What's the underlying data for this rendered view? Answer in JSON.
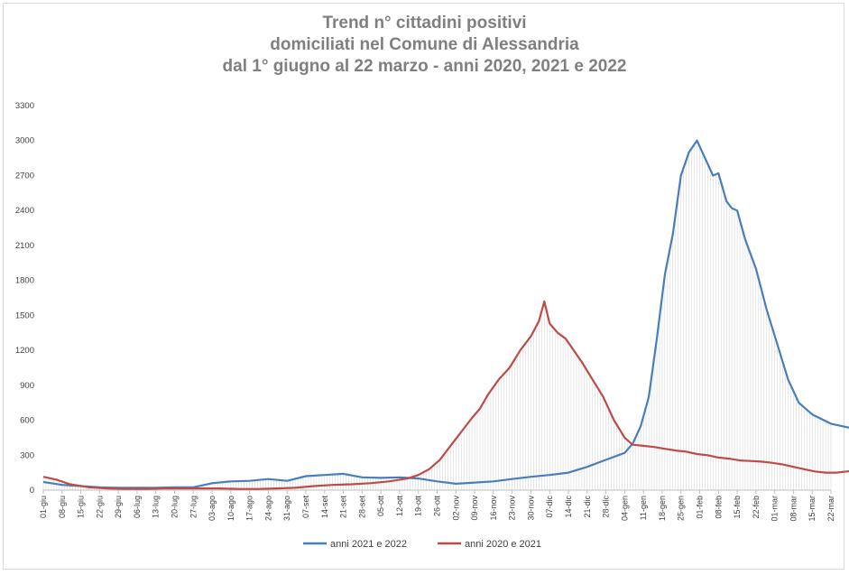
{
  "chart_data": {
    "type": "line",
    "title": [
      "Trend n° cittadini positivi",
      "domiciliati nel Comune di Alessandria",
      "dal 1° giugno al 22 marzo - anni 2020, 2021 e 2022"
    ],
    "xlabel": "",
    "ylabel": "",
    "ylim": [
      0,
      3300
    ],
    "yticks": [
      "0",
      "300",
      "600",
      "900",
      "1200",
      "1500",
      "1800",
      "2100",
      "2400",
      "2700",
      "3000",
      "3300"
    ],
    "categories": [
      "01-giu",
      "08-giu",
      "15-giu",
      "22-giu",
      "29-giu",
      "06-lug",
      "13-lug",
      "20-lug",
      "27-lug",
      "03-ago",
      "10-ago",
      "17-ago",
      "24-ago",
      "31-ago",
      "07-set",
      "14-set",
      "21-set",
      "28-set",
      "05-ott",
      "12-ott",
      "19-ott",
      "26-ott",
      "02-nov",
      "09-nov",
      "16-nov",
      "23-nov",
      "30-nov",
      "07-dic",
      "14-dic",
      "21-dic",
      "28-dic",
      "04-gen",
      "11-gen",
      "18-gen",
      "25-gen",
      "01-feb",
      "08-feb",
      "15-feb",
      "22-feb",
      "01-mar",
      "08-mar",
      "15-mar",
      "22-mar"
    ],
    "grid": false,
    "legend_position": "bottom",
    "series": [
      {
        "name": "anni 2021 e 2022",
        "color": "#4a7ebb",
        "points": [
          [
            0,
            70
          ],
          [
            3,
            60
          ],
          [
            7,
            45
          ],
          [
            14,
            35
          ],
          [
            21,
            25
          ],
          [
            28,
            20
          ],
          [
            35,
            20
          ],
          [
            42,
            20
          ],
          [
            49,
            25
          ],
          [
            56,
            25
          ],
          [
            63,
            60
          ],
          [
            70,
            75
          ],
          [
            77,
            80
          ],
          [
            84,
            95
          ],
          [
            91,
            80
          ],
          [
            98,
            120
          ],
          [
            105,
            130
          ],
          [
            112,
            140
          ],
          [
            119,
            110
          ],
          [
            126,
            105
          ],
          [
            133,
            110
          ],
          [
            140,
            100
          ],
          [
            147,
            75
          ],
          [
            154,
            55
          ],
          [
            161,
            65
          ],
          [
            168,
            75
          ],
          [
            175,
            95
          ],
          [
            182,
            115
          ],
          [
            189,
            130
          ],
          [
            196,
            150
          ],
          [
            203,
            200
          ],
          [
            210,
            260
          ],
          [
            217,
            320
          ],
          [
            220,
            400
          ],
          [
            223,
            550
          ],
          [
            226,
            800
          ],
          [
            229,
            1300
          ],
          [
            232,
            1850
          ],
          [
            235,
            2200
          ],
          [
            238,
            2700
          ],
          [
            241,
            2900
          ],
          [
            244,
            3000
          ],
          [
            247,
            2850
          ],
          [
            250,
            2700
          ],
          [
            252,
            2720
          ],
          [
            255,
            2480
          ],
          [
            257,
            2420
          ],
          [
            259,
            2400
          ],
          [
            262,
            2150
          ],
          [
            266,
            1900
          ],
          [
            270,
            1550
          ],
          [
            274,
            1250
          ],
          [
            278,
            950
          ],
          [
            282,
            750
          ],
          [
            287,
            650
          ],
          [
            294,
            570
          ],
          [
            301,
            535
          ],
          [
            308,
            545
          ],
          [
            315,
            570
          ],
          [
            319,
            600
          ],
          [
            323,
            680
          ],
          [
            326,
            700
          ]
        ]
      },
      {
        "name": "anni 2020 e 2021",
        "color": "#be4b48",
        "points": [
          [
            0,
            115
          ],
          [
            5,
            90
          ],
          [
            10,
            50
          ],
          [
            17,
            25
          ],
          [
            24,
            15
          ],
          [
            31,
            10
          ],
          [
            38,
            10
          ],
          [
            45,
            15
          ],
          [
            52,
            15
          ],
          [
            59,
            15
          ],
          [
            66,
            15
          ],
          [
            73,
            10
          ],
          [
            80,
            10
          ],
          [
            87,
            15
          ],
          [
            94,
            20
          ],
          [
            101,
            35
          ],
          [
            108,
            45
          ],
          [
            115,
            50
          ],
          [
            122,
            60
          ],
          [
            129,
            75
          ],
          [
            136,
            100
          ],
          [
            140,
            130
          ],
          [
            144,
            180
          ],
          [
            148,
            260
          ],
          [
            152,
            380
          ],
          [
            156,
            500
          ],
          [
            160,
            620
          ],
          [
            163,
            700
          ],
          [
            166,
            820
          ],
          [
            170,
            950
          ],
          [
            174,
            1050
          ],
          [
            178,
            1200
          ],
          [
            182,
            1320
          ],
          [
            185,
            1450
          ],
          [
            187,
            1620
          ],
          [
            189,
            1430
          ],
          [
            192,
            1350
          ],
          [
            195,
            1300
          ],
          [
            198,
            1200
          ],
          [
            201,
            1100
          ],
          [
            205,
            950
          ],
          [
            209,
            800
          ],
          [
            213,
            600
          ],
          [
            217,
            450
          ],
          [
            220,
            390
          ],
          [
            224,
            380
          ],
          [
            228,
            370
          ],
          [
            232,
            355
          ],
          [
            236,
            340
          ],
          [
            240,
            330
          ],
          [
            244,
            310
          ],
          [
            248,
            300
          ],
          [
            252,
            280
          ],
          [
            256,
            270
          ],
          [
            260,
            255
          ],
          [
            264,
            250
          ],
          [
            268,
            245
          ],
          [
            272,
            235
          ],
          [
            276,
            220
          ],
          [
            280,
            200
          ],
          [
            284,
            180
          ],
          [
            288,
            160
          ],
          [
            292,
            150
          ],
          [
            296,
            150
          ],
          [
            300,
            160
          ],
          [
            304,
            170
          ],
          [
            308,
            190
          ],
          [
            312,
            220
          ],
          [
            316,
            260
          ],
          [
            320,
            290
          ],
          [
            324,
            310
          ],
          [
            326,
            305
          ]
        ]
      }
    ]
  }
}
